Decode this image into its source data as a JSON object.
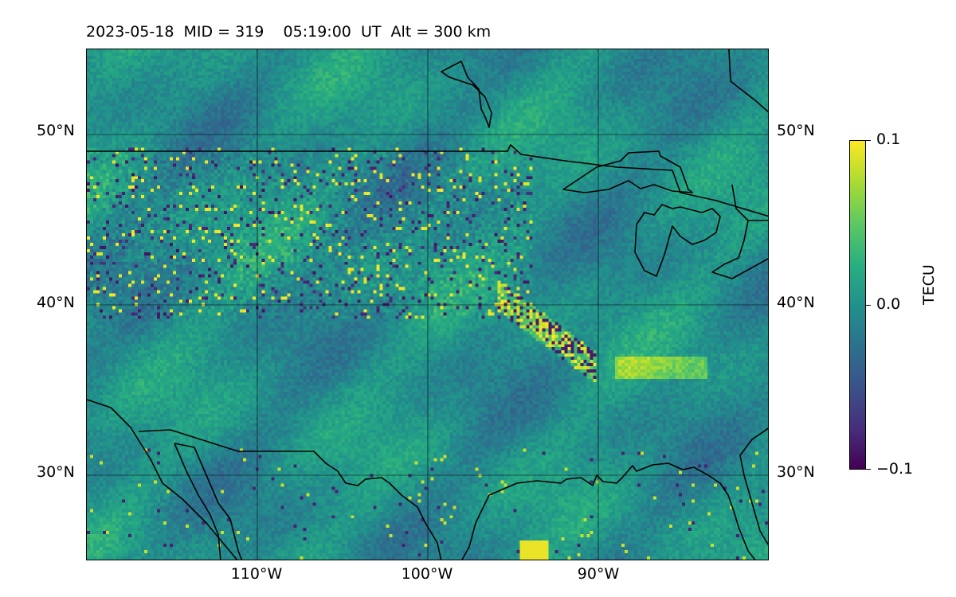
{
  "title": "2023-05-18  MID = 319    05:19:00  UT  Alt = 300 km",
  "map": {
    "projection": "plate-carree",
    "lon_range": [
      -120,
      -80
    ],
    "lat_range": [
      25,
      55
    ],
    "gridlines": true,
    "coastlines": true,
    "colormap": "viridis",
    "lat_labels": [
      "50°N",
      "40°N",
      "30°N"
    ],
    "lon_labels": [
      "110°W",
      "100°W",
      "90°W"
    ]
  },
  "colorbar": {
    "label": "TECU",
    "min": -0.1,
    "max": 0.1,
    "tick_labels": [
      "0.1",
      "0.0",
      "−0.1"
    ]
  },
  "field_description_values": {
    "background_level": 0.0,
    "note_hotspots": "scattered ±0.1 TECU pixels in northwest; band of anomalies near 36–38°N, 92–95°W"
  }
}
